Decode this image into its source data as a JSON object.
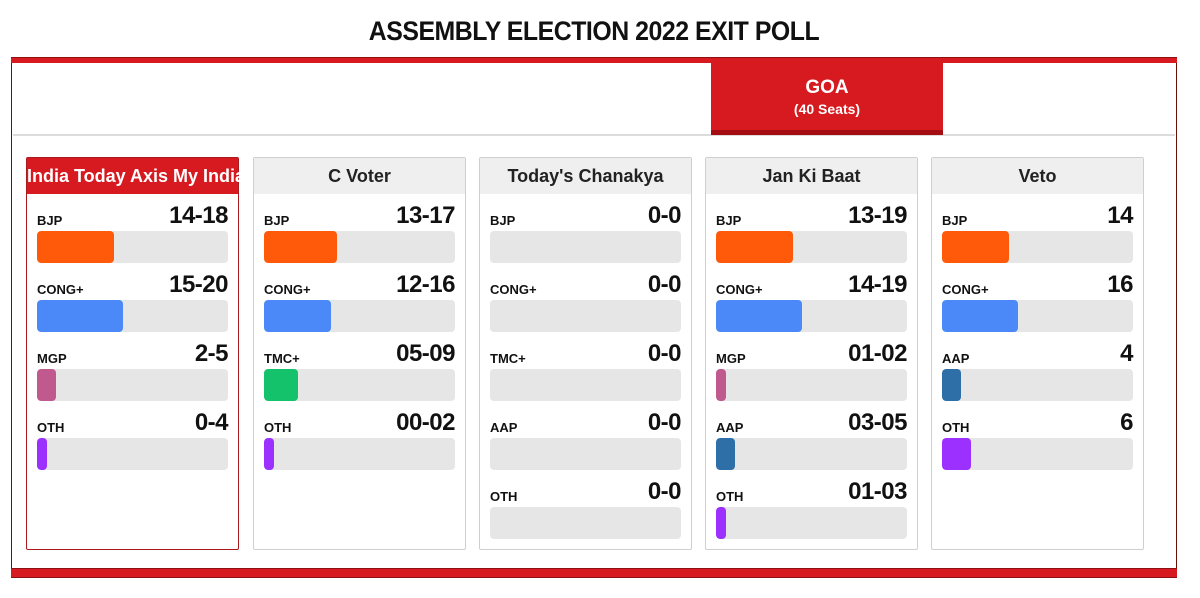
{
  "page": {
    "title": "ASSEMBLY ELECTION 2022 EXIT POLL"
  },
  "tab": {
    "state": "GOA",
    "seats": "(40 Seats)"
  },
  "colors": {
    "accent_red": "#d71920",
    "BJP": "#ff5a0a",
    "CONG+": "#4a89f7",
    "MGP": "#c05a8e",
    "TMC+": "#13c26b",
    "AAP": "#2e6fa8",
    "OTH": "#9b30ff",
    "track": "#e6e6e6"
  },
  "pollsters": [
    {
      "name": "India Today Axis My India",
      "active": true,
      "rows": [
        {
          "party": "BJP",
          "value": "14-18",
          "pct": 40.5
        },
        {
          "party": "CONG+",
          "value": "15-20",
          "pct": 45
        },
        {
          "party": "MGP",
          "value": "2-5",
          "pct": 10
        },
        {
          "party": "OTH",
          "value": "0-4",
          "pct": 5
        }
      ]
    },
    {
      "name": "C Voter",
      "active": false,
      "rows": [
        {
          "party": "BJP",
          "value": "13-17",
          "pct": 38
        },
        {
          "party": "CONG+",
          "value": "12-16",
          "pct": 35
        },
        {
          "party": "TMC+",
          "value": "05-09",
          "pct": 18
        },
        {
          "party": "OTH",
          "value": "00-02",
          "pct": 5
        }
      ]
    },
    {
      "name": "Today's Chanakya",
      "active": false,
      "rows": [
        {
          "party": "BJP",
          "value": "0-0",
          "pct": 0
        },
        {
          "party": "CONG+",
          "value": "0-0",
          "pct": 0
        },
        {
          "party": "TMC+",
          "value": "0-0",
          "pct": 0
        },
        {
          "party": "AAP",
          "value": "0-0",
          "pct": 0
        },
        {
          "party": "OTH",
          "value": "0-0",
          "pct": 0
        }
      ]
    },
    {
      "name": "Jan Ki Baat",
      "active": false,
      "rows": [
        {
          "party": "BJP",
          "value": "13-19",
          "pct": 40.5
        },
        {
          "party": "CONG+",
          "value": "14-19",
          "pct": 45
        },
        {
          "party": "MGP",
          "value": "01-02",
          "pct": 5
        },
        {
          "party": "AAP",
          "value": "03-05",
          "pct": 10
        },
        {
          "party": "OTH",
          "value": "01-03",
          "pct": 5
        }
      ]
    },
    {
      "name": "Veto",
      "active": false,
      "rows": [
        {
          "party": "BJP",
          "value": "14",
          "pct": 35
        },
        {
          "party": "CONG+",
          "value": "16",
          "pct": 40
        },
        {
          "party": "AAP",
          "value": "4",
          "pct": 10
        },
        {
          "party": "OTH",
          "value": "6",
          "pct": 15
        }
      ]
    }
  ],
  "chart_data": {
    "type": "bar",
    "title": "ASSEMBLY ELECTION 2022 EXIT POLL",
    "subtitle": "GOA (40 Seats)",
    "orientation": "horizontal",
    "xlabel": "",
    "ylabel": "",
    "xlim": [
      0,
      40
    ],
    "grid": false,
    "legend": "none",
    "panels": [
      {
        "pollster": "India Today Axis My India",
        "categories": [
          "BJP",
          "CONG+",
          "MGP",
          "OTH"
        ],
        "labels": [
          "14-18",
          "15-20",
          "2-5",
          "0-4"
        ],
        "ranges": [
          [
            14,
            18
          ],
          [
            15,
            20
          ],
          [
            2,
            5
          ],
          [
            0,
            4
          ]
        ]
      },
      {
        "pollster": "C Voter",
        "categories": [
          "BJP",
          "CONG+",
          "TMC+",
          "OTH"
        ],
        "labels": [
          "13-17",
          "12-16",
          "05-09",
          "00-02"
        ],
        "ranges": [
          [
            13,
            17
          ],
          [
            12,
            16
          ],
          [
            5,
            9
          ],
          [
            0,
            2
          ]
        ]
      },
      {
        "pollster": "Today's Chanakya",
        "categories": [
          "BJP",
          "CONG+",
          "TMC+",
          "AAP",
          "OTH"
        ],
        "labels": [
          "0-0",
          "0-0",
          "0-0",
          "0-0",
          "0-0"
        ],
        "ranges": [
          [
            0,
            0
          ],
          [
            0,
            0
          ],
          [
            0,
            0
          ],
          [
            0,
            0
          ],
          [
            0,
            0
          ]
        ]
      },
      {
        "pollster": "Jan Ki Baat",
        "categories": [
          "BJP",
          "CONG+",
          "MGP",
          "AAP",
          "OTH"
        ],
        "labels": [
          "13-19",
          "14-19",
          "01-02",
          "03-05",
          "01-03"
        ],
        "ranges": [
          [
            13,
            19
          ],
          [
            14,
            19
          ],
          [
            1,
            2
          ],
          [
            3,
            5
          ],
          [
            1,
            3
          ]
        ]
      },
      {
        "pollster": "Veto",
        "categories": [
          "BJP",
          "CONG+",
          "AAP",
          "OTH"
        ],
        "labels": [
          "14",
          "16",
          "4",
          "6"
        ],
        "values": [
          14,
          16,
          4,
          6
        ]
      }
    ]
  }
}
